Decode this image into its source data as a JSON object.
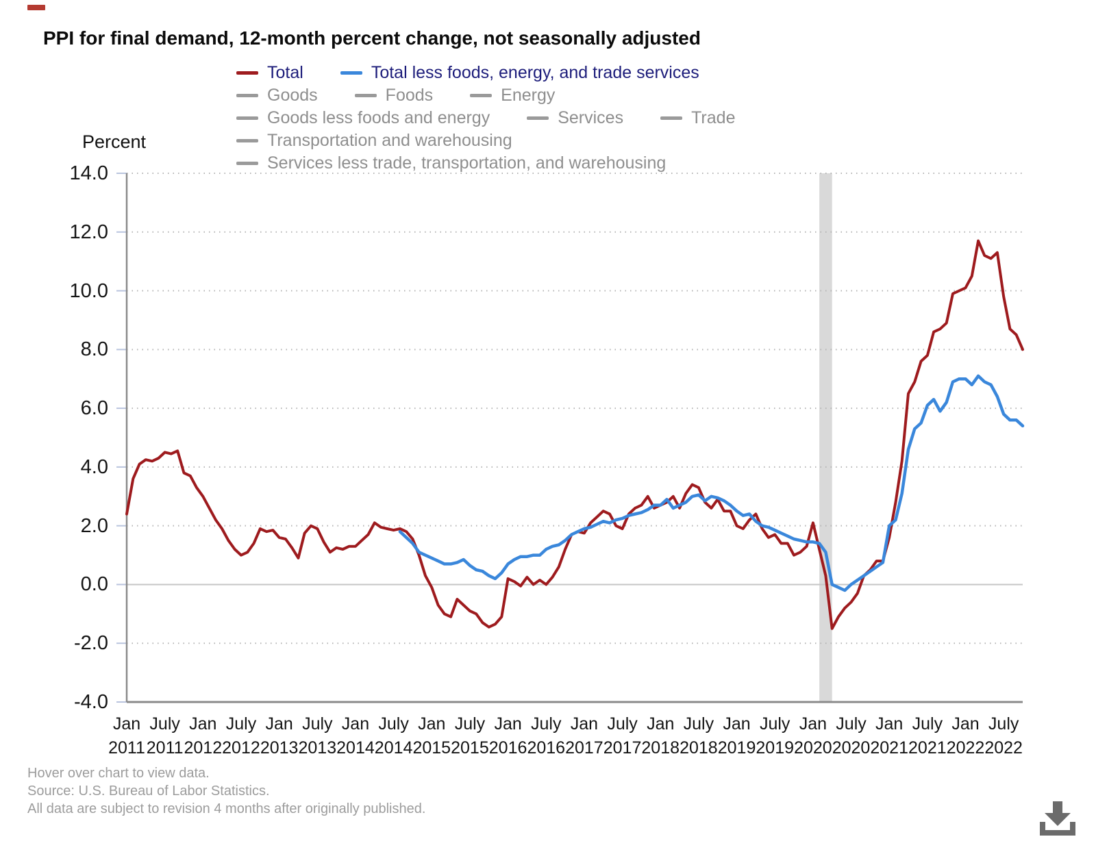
{
  "title": "PPI for final demand, 12-month percent change, not seasonally adjusted",
  "y_axis": {
    "label": "Percent",
    "ticks": [
      "14.0",
      "12.0",
      "10.0",
      "8.0",
      "6.0",
      "4.0",
      "2.0",
      "0.0",
      "-2.0",
      "-4.0"
    ],
    "min": -4.0,
    "max": 14.0
  },
  "x_axis": {
    "ticks": [
      {
        "month": "Jan",
        "year": "2011"
      },
      {
        "month": "July",
        "year": "2011"
      },
      {
        "month": "Jan",
        "year": "2012"
      },
      {
        "month": "July",
        "year": "2012"
      },
      {
        "month": "Jan",
        "year": "2013"
      },
      {
        "month": "July",
        "year": "2013"
      },
      {
        "month": "Jan",
        "year": "2014"
      },
      {
        "month": "July",
        "year": "2014"
      },
      {
        "month": "Jan",
        "year": "2015"
      },
      {
        "month": "July",
        "year": "2015"
      },
      {
        "month": "Jan",
        "year": "2016"
      },
      {
        "month": "July",
        "year": "2016"
      },
      {
        "month": "Jan",
        "year": "2017"
      },
      {
        "month": "July",
        "year": "2017"
      },
      {
        "month": "Jan",
        "year": "2018"
      },
      {
        "month": "July",
        "year": "2018"
      },
      {
        "month": "Jan",
        "year": "2019"
      },
      {
        "month": "July",
        "year": "2019"
      },
      {
        "month": "Jan",
        "year": "2020"
      },
      {
        "month": "July",
        "year": "2020"
      },
      {
        "month": "Jan",
        "year": "2021"
      },
      {
        "month": "July",
        "year": "2021"
      },
      {
        "month": "Jan",
        "year": "2022"
      },
      {
        "month": "July",
        "year": "2022"
      }
    ]
  },
  "legend": {
    "rows": [
      [
        {
          "label": "Total",
          "swatch": "#9e1b1e",
          "active": true
        },
        {
          "label": "Total less foods, energy, and trade services",
          "swatch": "#3a87db",
          "active": true
        }
      ],
      [
        {
          "label": "Goods",
          "swatch": "#9a9a9a",
          "active": false
        },
        {
          "label": "Foods",
          "swatch": "#9a9a9a",
          "active": false
        },
        {
          "label": "Energy",
          "swatch": "#9a9a9a",
          "active": false
        }
      ],
      [
        {
          "label": "Goods less foods and energy",
          "swatch": "#9a9a9a",
          "active": false
        },
        {
          "label": "Services",
          "swatch": "#9a9a9a",
          "active": false
        },
        {
          "label": "Trade",
          "swatch": "#9a9a9a",
          "active": false
        }
      ],
      [
        {
          "label": "Transportation and warehousing",
          "swatch": "#9a9a9a",
          "active": false
        }
      ],
      [
        {
          "label": "Services less trade, transportation, and warehousing",
          "swatch": "#9a9a9a",
          "active": false
        }
      ]
    ]
  },
  "footer": {
    "lines": [
      "Hover over chart to view data.",
      "Source: U.S. Bureau of Labor Statistics.",
      "All data are subject to revision 4 months after originally published."
    ]
  },
  "download_icon_color": "#6b6b6b",
  "chart_data": {
    "type": "line",
    "title": "PPI for final demand, 12-month percent change, not seasonally adjusted",
    "ylabel": "Percent",
    "ylim": [
      -4.0,
      14.0
    ],
    "grid": "dotted horizontal",
    "frequency": "monthly",
    "x_start": "2011-01",
    "x_end": "2022-10",
    "recession_band": {
      "from": "2020-02",
      "to": "2020-04",
      "color": "#d9d9d9"
    },
    "colors": {
      "zero_line": "#c6c6c6",
      "gridline": "#b3b3b3",
      "axis": "#8a8a8a",
      "tick": "#b9c4de"
    },
    "series": [
      {
        "name": "Total",
        "color": "#9e1b1e",
        "start": "2011-01",
        "values": [
          2.4,
          3.6,
          4.1,
          4.25,
          4.2,
          4.3,
          4.5,
          4.45,
          4.55,
          3.8,
          3.7,
          3.3,
          3.0,
          2.6,
          2.2,
          1.9,
          1.5,
          1.2,
          1.0,
          1.1,
          1.4,
          1.9,
          1.8,
          1.85,
          1.6,
          1.55,
          1.25,
          0.9,
          1.75,
          2.0,
          1.9,
          1.45,
          1.1,
          1.25,
          1.2,
          1.3,
          1.3,
          1.5,
          1.7,
          2.1,
          1.95,
          1.9,
          1.85,
          1.9,
          1.8,
          1.55,
          1.0,
          0.3,
          -0.1,
          -0.7,
          -1.0,
          -1.1,
          -0.5,
          -0.7,
          -0.9,
          -1.0,
          -1.3,
          -1.45,
          -1.35,
          -1.1,
          0.2,
          0.1,
          -0.05,
          0.25,
          0.0,
          0.15,
          0.0,
          0.25,
          0.6,
          1.2,
          1.7,
          1.8,
          1.75,
          2.1,
          2.3,
          2.5,
          2.4,
          2.0,
          1.9,
          2.4,
          2.6,
          2.7,
          3.0,
          2.6,
          2.7,
          2.8,
          3.0,
          2.6,
          3.1,
          3.4,
          3.3,
          2.8,
          2.6,
          2.9,
          2.5,
          2.5,
          2.0,
          1.9,
          2.2,
          2.4,
          1.9,
          1.6,
          1.7,
          1.4,
          1.4,
          1.0,
          1.1,
          1.3,
          2.1,
          1.2,
          0.3,
          -1.5,
          -1.1,
          -0.8,
          -0.6,
          -0.3,
          0.3,
          0.5,
          0.8,
          0.8,
          1.6,
          2.8,
          4.2,
          6.5,
          6.9,
          7.6,
          7.8,
          8.6,
          8.7,
          8.9,
          9.9,
          10.0,
          10.1,
          10.5,
          11.7,
          11.2,
          11.1,
          11.3,
          9.8,
          8.7,
          8.5,
          8.0
        ]
      },
      {
        "name": "Total less foods, energy, and trade services",
        "color": "#3a87db",
        "start": "2014-08",
        "values": [
          1.8,
          1.6,
          1.4,
          1.1,
          1.0,
          0.9,
          0.8,
          0.7,
          0.7,
          0.75,
          0.85,
          0.65,
          0.5,
          0.45,
          0.3,
          0.2,
          0.4,
          0.7,
          0.85,
          0.95,
          0.95,
          1.0,
          1.0,
          1.2,
          1.3,
          1.35,
          1.5,
          1.7,
          1.8,
          1.9,
          1.95,
          2.05,
          2.15,
          2.1,
          2.2,
          2.25,
          2.35,
          2.4,
          2.45,
          2.55,
          2.7,
          2.7,
          2.9,
          2.6,
          2.7,
          2.8,
          3.0,
          3.05,
          2.85,
          3.0,
          2.95,
          2.85,
          2.7,
          2.5,
          2.35,
          2.4,
          2.15,
          2.0,
          1.95,
          1.85,
          1.75,
          1.65,
          1.55,
          1.5,
          1.45,
          1.45,
          1.4,
          1.1,
          0.0,
          -0.1,
          -0.2,
          0.0,
          0.15,
          0.3,
          0.45,
          0.6,
          0.75,
          2.0,
          2.2,
          3.1,
          4.6,
          5.3,
          5.5,
          6.1,
          6.3,
          5.9,
          6.2,
          6.9,
          7.0,
          7.0,
          6.8,
          7.1,
          6.9,
          6.8,
          6.4,
          5.8,
          5.6,
          5.6,
          5.4
        ]
      }
    ]
  }
}
